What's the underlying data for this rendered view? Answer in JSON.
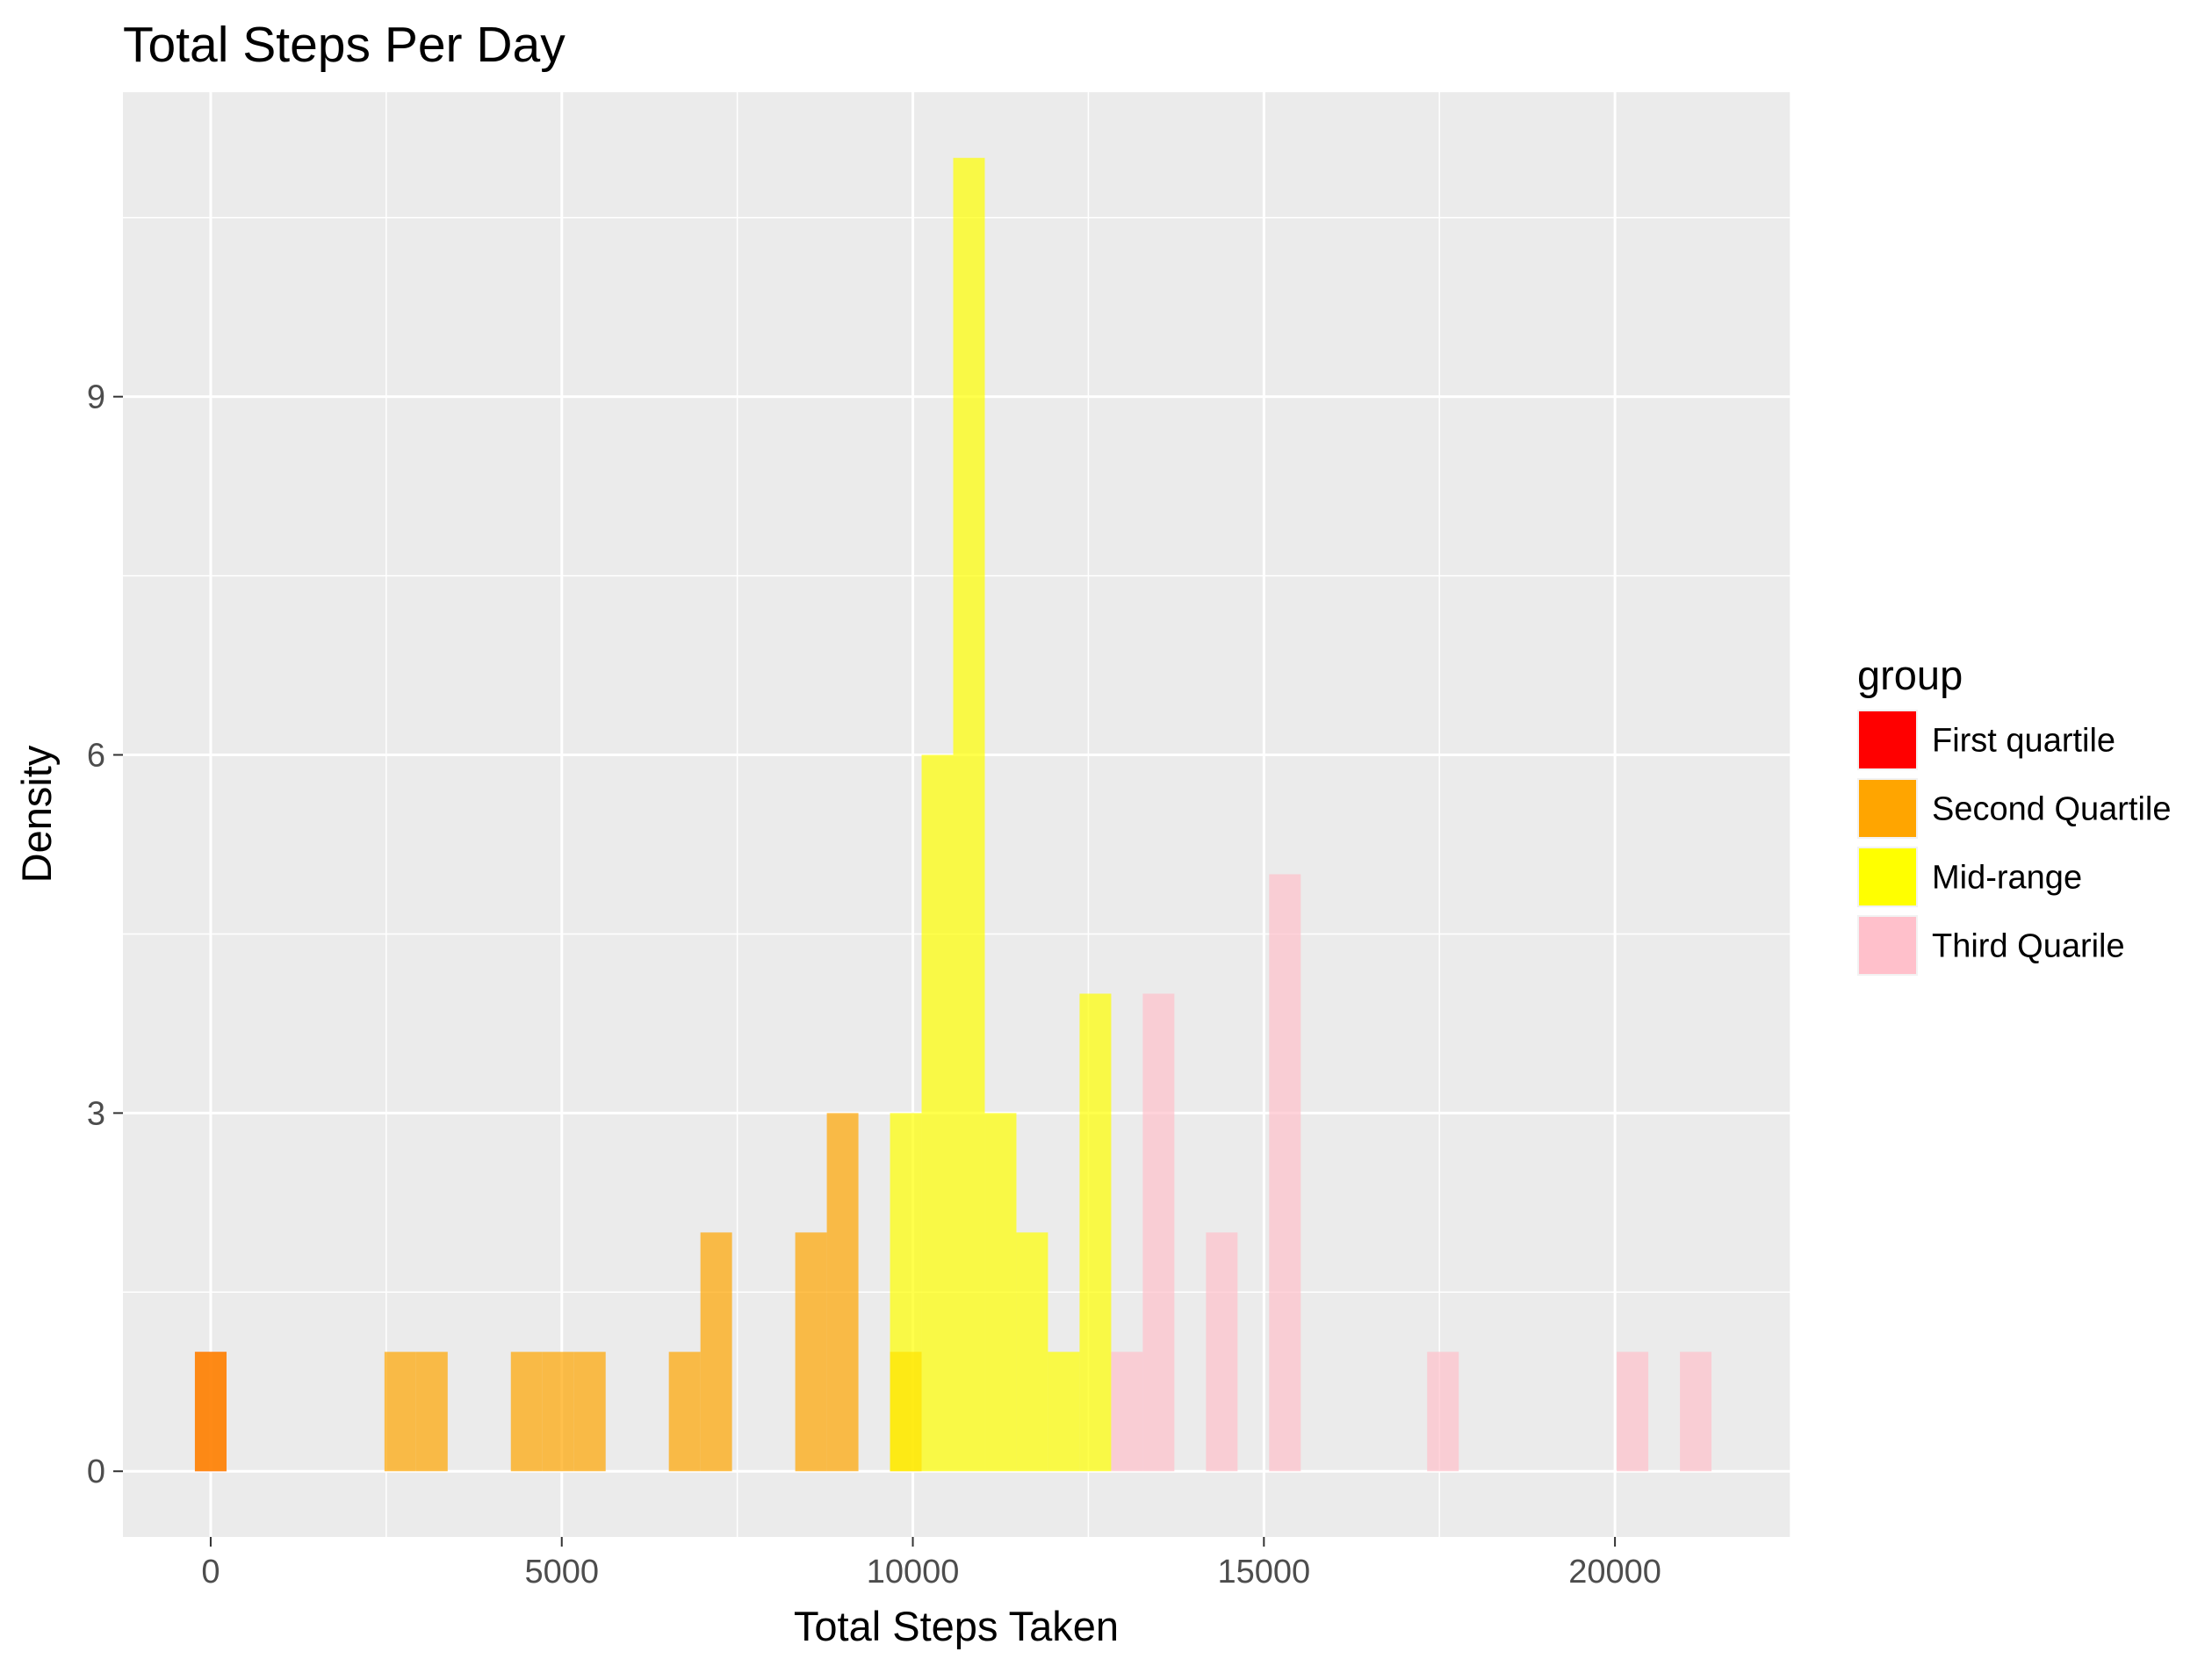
{
  "chart_data": {
    "type": "bar",
    "title": "Total Steps Per Day",
    "xlabel": "Total Steps Taken",
    "ylabel": "Density",
    "xlim": [
      -1250,
      22500
    ],
    "ylim": [
      -0.55,
      11.55
    ],
    "x_ticks": [
      0,
      5000,
      10000,
      15000,
      20000
    ],
    "x_tick_labels": [
      "0",
      "5000",
      "10000",
      "15000",
      "20000"
    ],
    "y_ticks": [
      0,
      3,
      6,
      9
    ],
    "y_tick_labels": [
      "0",
      "3",
      "6",
      "9"
    ],
    "bin_width": 450,
    "grid": true,
    "legend": {
      "title": "group",
      "position": "right",
      "entries": [
        {
          "label": "First quartile",
          "color": "#FF0000"
        },
        {
          "label": "Second Quartile",
          "color": "#FFA500"
        },
        {
          "label": "Mid-range",
          "color": "#FFFF00"
        },
        {
          "label": "Third Quarile",
          "color": "#FFC0CB"
        }
      ]
    },
    "series": [
      {
        "name": "First quartile",
        "color": "#FF0000",
        "bins": [
          {
            "x0": -225,
            "x1": 225,
            "count": 1
          }
        ]
      },
      {
        "name": "Second Quartile",
        "color": "#FFA500",
        "bins": [
          {
            "x0": -225,
            "x1": 225,
            "count": 1
          },
          {
            "x0": 2475,
            "x1": 2925,
            "count": 1
          },
          {
            "x0": 2925,
            "x1": 3375,
            "count": 1
          },
          {
            "x0": 4275,
            "x1": 4725,
            "count": 1
          },
          {
            "x0": 4725,
            "x1": 5175,
            "count": 1
          },
          {
            "x0": 5175,
            "x1": 5625,
            "count": 1
          },
          {
            "x0": 6525,
            "x1": 6975,
            "count": 1
          },
          {
            "x0": 6975,
            "x1": 7425,
            "count": 2
          },
          {
            "x0": 8325,
            "x1": 8775,
            "count": 2
          },
          {
            "x0": 8775,
            "x1": 9225,
            "count": 3
          },
          {
            "x0": 9675,
            "x1": 10125,
            "count": 1
          }
        ]
      },
      {
        "name": "Mid-range",
        "color": "#FFFF00",
        "bins": [
          {
            "x0": 9675,
            "x1": 10125,
            "count": 3
          },
          {
            "x0": 10125,
            "x1": 10575,
            "count": 6
          },
          {
            "x0": 10575,
            "x1": 11025,
            "count": 11
          },
          {
            "x0": 11025,
            "x1": 11475,
            "count": 3
          },
          {
            "x0": 11475,
            "x1": 11925,
            "count": 2
          },
          {
            "x0": 11925,
            "x1": 12375,
            "count": 1
          },
          {
            "x0": 12375,
            "x1": 12825,
            "count": 4
          }
        ]
      },
      {
        "name": "Third Quarile",
        "color": "#FFC0CB",
        "bins": [
          {
            "x0": 12825,
            "x1": 13275,
            "count": 1
          },
          {
            "x0": 13275,
            "x1": 13725,
            "count": 4
          },
          {
            "x0": 14175,
            "x1": 14625,
            "count": 2
          },
          {
            "x0": 15075,
            "x1": 15525,
            "count": 5
          },
          {
            "x0": 17325,
            "x1": 17775,
            "count": 1
          },
          {
            "x0": 20025,
            "x1": 20475,
            "count": 1
          },
          {
            "x0": 20925,
            "x1": 21375,
            "count": 1
          }
        ]
      }
    ]
  }
}
